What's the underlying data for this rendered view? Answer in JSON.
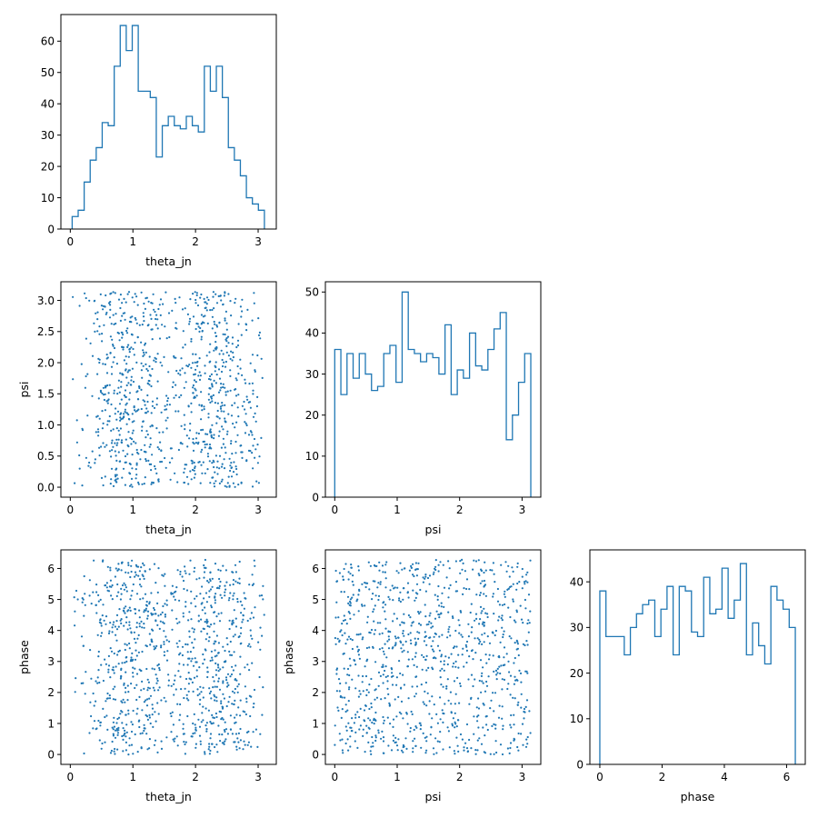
{
  "colors": {
    "series": "#1f77b4",
    "axes": "#000000",
    "background": "#ffffff"
  },
  "chart_data": [
    {
      "panel": "theta_jn-hist",
      "type": "histogram",
      "xlabel": "theta_jn",
      "ylabel": "",
      "xlim": [
        -0.15,
        3.29
      ],
      "ylim": [
        0,
        68.5
      ],
      "xticks": [
        0,
        1,
        2,
        3
      ],
      "yticks": [
        0,
        10,
        20,
        30,
        40,
        50,
        60
      ],
      "bin_range": [
        0.03,
        3.1
      ],
      "values": [
        4,
        6,
        15,
        22,
        26,
        34,
        33,
        52,
        65,
        57,
        65,
        44,
        44,
        42,
        23,
        33,
        36,
        33,
        32,
        36,
        33,
        31,
        52,
        44,
        52,
        42,
        26,
        22,
        17,
        10,
        8,
        6
      ]
    },
    {
      "panel": "psi-vs-theta_jn",
      "type": "scatter",
      "xlabel": "theta_jn",
      "ylabel": "psi",
      "xlim": [
        -0.15,
        3.29
      ],
      "ylim": [
        -0.16,
        3.3
      ],
      "xticks": [
        0,
        1,
        2,
        3
      ],
      "yticks": [
        0.0,
        0.5,
        1.0,
        1.5,
        2.0,
        2.5,
        3.0
      ],
      "xticklabels": [
        "0",
        "1",
        "2",
        "3"
      ],
      "yticklabels": [
        "0.0",
        "0.5",
        "1.0",
        "1.5",
        "2.0",
        "2.5",
        "3.0"
      ],
      "points_sampled": {
        "x_range": [
          0.03,
          3.1
        ],
        "y_range": [
          0.0,
          3.14
        ],
        "count": 1000,
        "x_peaks": [
          0.95,
          2.3
        ]
      }
    },
    {
      "panel": "psi-hist",
      "type": "histogram",
      "xlabel": "psi",
      "ylabel": "",
      "xlim": [
        -0.15,
        3.3
      ],
      "ylim": [
        0,
        52.5
      ],
      "xticks": [
        0,
        1,
        2,
        3
      ],
      "yticks": [
        0,
        10,
        20,
        30,
        40,
        50
      ],
      "bin_range": [
        0.0,
        3.14
      ],
      "values": [
        36,
        25,
        35,
        29,
        35,
        30,
        26,
        27,
        35,
        37,
        28,
        50,
        36,
        35,
        33,
        35,
        34,
        30,
        42,
        25,
        31,
        29,
        40,
        32,
        31,
        36,
        41,
        45,
        14,
        20,
        28,
        35
      ]
    },
    {
      "panel": "phase-vs-theta_jn",
      "type": "scatter",
      "xlabel": "theta_jn",
      "ylabel": "phase",
      "xlim": [
        -0.15,
        3.29
      ],
      "ylim": [
        -0.32,
        6.6
      ],
      "xticks": [
        0,
        1,
        2,
        3
      ],
      "yticks": [
        0,
        1,
        2,
        3,
        4,
        5,
        6
      ],
      "xticklabels": [
        "0",
        "1",
        "2",
        "3"
      ],
      "yticklabels": [
        "0",
        "1",
        "2",
        "3",
        "4",
        "5",
        "6"
      ],
      "points_sampled": {
        "x_range": [
          0.03,
          3.1
        ],
        "y_range": [
          0.0,
          6.28
        ],
        "count": 1000,
        "x_peaks": [
          0.95,
          2.3
        ]
      }
    },
    {
      "panel": "phase-vs-psi",
      "type": "scatter",
      "xlabel": "psi",
      "ylabel": "phase",
      "xlim": [
        -0.15,
        3.3
      ],
      "ylim": [
        -0.32,
        6.6
      ],
      "xticks": [
        0,
        1,
        2,
        3
      ],
      "yticks": [
        0,
        1,
        2,
        3,
        4,
        5,
        6
      ],
      "xticklabels": [
        "0",
        "1",
        "2",
        "3"
      ],
      "yticklabels": [
        "0",
        "1",
        "2",
        "3",
        "4",
        "5",
        "6"
      ],
      "points_sampled": {
        "x_range": [
          0.0,
          3.14
        ],
        "y_range": [
          0.0,
          6.28
        ],
        "count": 1000
      }
    },
    {
      "panel": "phase-hist",
      "type": "histogram",
      "xlabel": "phase",
      "ylabel": "",
      "xlim": [
        -0.32,
        6.6
      ],
      "ylim": [
        0,
        47
      ],
      "xticks": [
        0,
        2,
        4,
        6
      ],
      "yticks": [
        0,
        10,
        20,
        30,
        40
      ],
      "bin_range": [
        0.0,
        6.28
      ],
      "values": [
        38,
        28,
        28,
        28,
        24,
        30,
        33,
        35,
        36,
        28,
        34,
        39,
        24,
        39,
        38,
        29,
        28,
        41,
        33,
        34,
        43,
        32,
        36,
        44,
        24,
        31,
        26,
        22,
        39,
        36,
        34,
        30
      ]
    }
  ]
}
